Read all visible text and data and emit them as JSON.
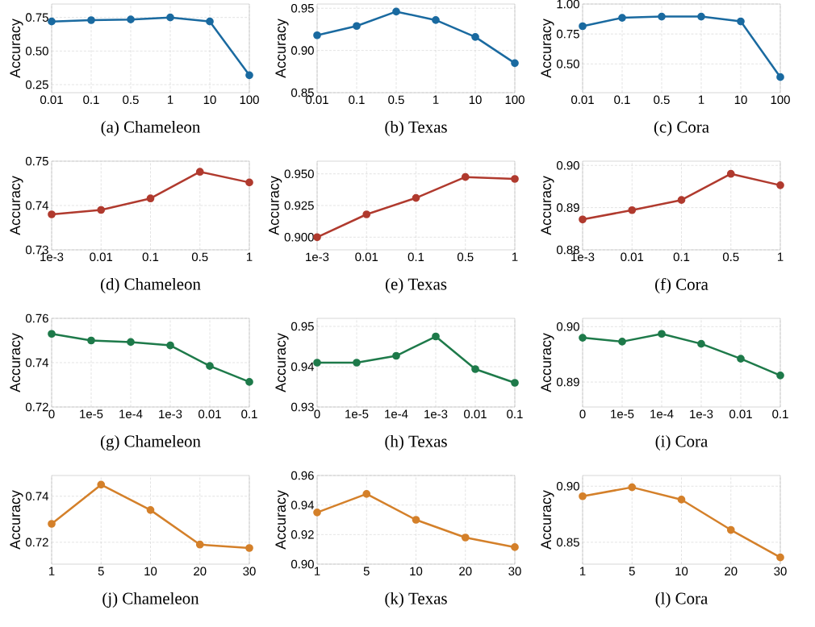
{
  "chart_data": [
    {
      "type": "line",
      "xlabel": "(a) Chameleon",
      "ylabel": "Accuracy",
      "categories": [
        "0.01",
        "0.1",
        "0.5",
        "1",
        "10",
        "100"
      ],
      "values": [
        0.72,
        0.73,
        0.735,
        0.75,
        0.72,
        0.32
      ],
      "color": "#1a6aa0",
      "ylim": [
        0.19,
        0.85
      ],
      "yticks": [
        0.25,
        {
          "value": 0.5,
          "label": "0.50"
        },
        0.75
      ],
      "grid": true,
      "marker": "circle"
    },
    {
      "type": "line",
      "xlabel": "(b) Texas",
      "ylabel": "Accuracy",
      "categories": [
        "0.01",
        "0.1",
        "0.5",
        "1",
        "10",
        "100"
      ],
      "values": [
        0.918,
        0.929,
        0.946,
        0.936,
        0.916,
        0.885
      ],
      "color": "#1a6aa0",
      "ylim": [
        0.85,
        0.955
      ],
      "yticks": [
        0.85,
        {
          "value": 0.9,
          "label": "0.90"
        },
        0.95
      ],
      "grid": true,
      "marker": "circle"
    },
    {
      "type": "line",
      "xlabel": "(c) Cora",
      "ylabel": "Accuracy",
      "categories": [
        "0.01",
        "0.1",
        "0.5",
        "1",
        "10",
        "100"
      ],
      "values": [
        0.815,
        0.885,
        0.895,
        0.895,
        0.855,
        0.39
      ],
      "color": "#1a6aa0",
      "ylim": [
        0.26,
        1.0
      ],
      "yticks": [
        {
          "value": 0.5,
          "label": "0.50"
        },
        0.75,
        {
          "value": 1.0,
          "label": "1.00"
        }
      ],
      "grid": true,
      "marker": "circle"
    },
    {
      "type": "line",
      "xlabel": "(d) Chameleon",
      "ylabel": "Accuracy",
      "categories": [
        "1e-3",
        "0.01",
        "0.1",
        "0.5",
        "1"
      ],
      "values": [
        0.738,
        0.739,
        0.7416,
        0.7476,
        0.7452
      ],
      "color": "#b03a2e",
      "ylim": [
        0.73,
        0.75
      ],
      "yticks": [
        0.73,
        0.74,
        0.75
      ],
      "grid": true,
      "marker": "circle"
    },
    {
      "type": "line",
      "xlabel": "(e) Texas",
      "ylabel": "Accuracy",
      "categories": [
        "1e-3",
        "0.01",
        "0.1",
        "0.5",
        "1"
      ],
      "values": [
        0.9,
        0.918,
        0.931,
        0.9475,
        0.946
      ],
      "color": "#b03a2e",
      "ylim": [
        0.89,
        0.96
      ],
      "yticks": [
        {
          "value": 0.9,
          "label": "0.900"
        },
        0.925,
        {
          "value": 0.95,
          "label": "0.950"
        }
      ],
      "grid": true,
      "marker": "circle"
    },
    {
      "type": "line",
      "xlabel": "(f) Cora",
      "ylabel": "Accuracy",
      "categories": [
        "1e-3",
        "0.01",
        "0.1",
        "0.5",
        "1"
      ],
      "values": [
        0.8872,
        0.8894,
        0.8918,
        0.898,
        0.8953
      ],
      "color": "#b03a2e",
      "ylim": [
        0.88,
        0.901
      ],
      "yticks": [
        0.88,
        0.89,
        {
          "value": 0.9,
          "label": "0.90"
        }
      ],
      "grid": true,
      "marker": "circle"
    },
    {
      "type": "line",
      "xlabel": "(g) Chameleon",
      "ylabel": "Accuracy",
      "categories": [
        "0",
        "1e-5",
        "1e-4",
        "1e-3",
        "0.01",
        "0.1"
      ],
      "values": [
        0.753,
        0.75,
        0.7493,
        0.7478,
        0.7385,
        0.7313
      ],
      "color": "#1e7a4a",
      "ylim": [
        0.72,
        0.76
      ],
      "yticks": [
        0.72,
        0.74,
        0.76
      ],
      "grid": true,
      "marker": "circle"
    },
    {
      "type": "line",
      "xlabel": "(h) Texas",
      "ylabel": "Accuracy",
      "categories": [
        "0",
        "1e-5",
        "1e-4",
        "1e-3",
        "0.01",
        "0.1"
      ],
      "values": [
        0.941,
        0.941,
        0.9427,
        0.9475,
        0.9394,
        0.936
      ],
      "color": "#1e7a4a",
      "ylim": [
        0.93,
        0.952
      ],
      "yticks": [
        0.93,
        0.94,
        0.95
      ],
      "grid": true,
      "marker": "circle"
    },
    {
      "type": "line",
      "xlabel": "(i) Cora",
      "ylabel": "Accuracy",
      "categories": [
        "0",
        "1e-5",
        "1e-4",
        "1e-3",
        "0.01",
        "0.1"
      ],
      "values": [
        0.898,
        0.8973,
        0.8987,
        0.8969,
        0.8942,
        0.8912
      ],
      "color": "#1e7a4a",
      "ylim": [
        0.8855,
        0.9015
      ],
      "yticks": [
        0.89,
        {
          "value": 0.9,
          "label": "0.90"
        }
      ],
      "grid": true,
      "marker": "circle"
    },
    {
      "type": "line",
      "xlabel": "(j) Chameleon",
      "ylabel": "Accuracy",
      "categories": [
        "1",
        "5",
        "10",
        "20",
        "30"
      ],
      "values": [
        0.728,
        0.745,
        0.734,
        0.719,
        0.7175
      ],
      "color": "#d4802a",
      "ylim": [
        0.7105,
        0.749
      ],
      "yticks": [
        0.72,
        0.74
      ],
      "grid": true,
      "marker": "circle"
    },
    {
      "type": "line",
      "xlabel": "(k) Texas",
      "ylabel": "Accuracy",
      "categories": [
        "1",
        "5",
        "10",
        "20",
        "30"
      ],
      "values": [
        0.935,
        0.9475,
        0.93,
        0.918,
        0.9115
      ],
      "color": "#d4802a",
      "ylim": [
        0.9,
        0.96
      ],
      "yticks": [
        {
          "value": 0.9,
          "label": "0.90"
        },
        0.92,
        0.94,
        0.96
      ],
      "grid": true,
      "marker": "circle"
    },
    {
      "type": "line",
      "xlabel": "(l) Cora",
      "ylabel": "Accuracy",
      "categories": [
        "1",
        "5",
        "10",
        "20",
        "30"
      ],
      "values": [
        0.891,
        0.899,
        0.888,
        0.861,
        0.8365
      ],
      "color": "#d4802a",
      "ylim": [
        0.8305,
        0.9095
      ],
      "yticks": [
        0.85,
        {
          "value": 0.9,
          "label": "0.90"
        }
      ],
      "grid": true,
      "marker": "circle"
    }
  ]
}
